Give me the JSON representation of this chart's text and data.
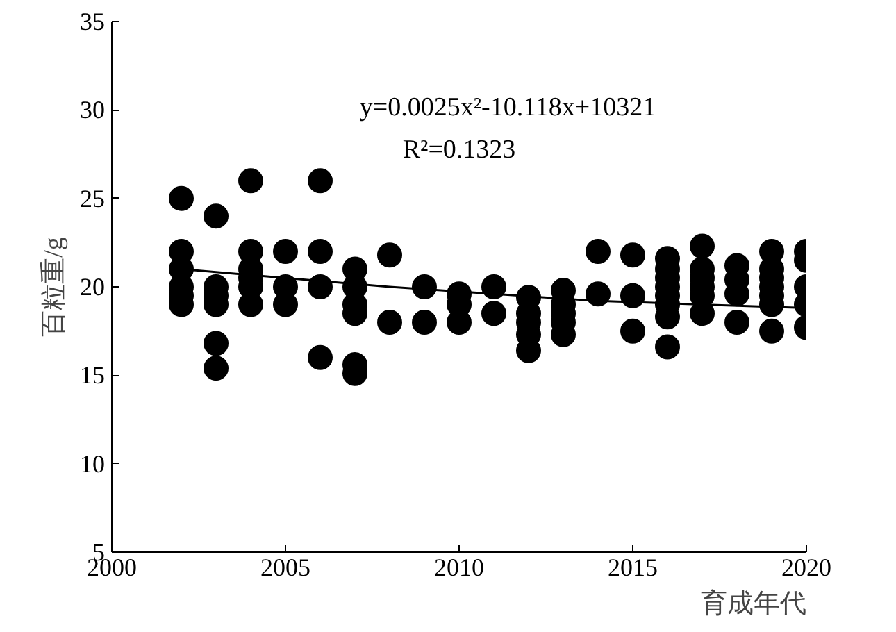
{
  "chart_data": {
    "type": "scatter",
    "xlabel": "育成年代",
    "ylabel": "百粒重/g",
    "annotations": [
      "y=0.0025x²-10.118x+10321",
      "R²=0.1323"
    ],
    "xlim": [
      2000,
      2020
    ],
    "ylim": [
      5,
      35
    ],
    "xticks": [
      2000,
      2005,
      2010,
      2015,
      2020
    ],
    "yticks": [
      5,
      10,
      15,
      20,
      25,
      30,
      35
    ],
    "grid": false,
    "marker": "circle",
    "series": [
      {
        "color": "#000000",
        "x": [
          2002,
          2002,
          2002,
          2002,
          2002,
          2002,
          2003,
          2003,
          2003,
          2003,
          2003,
          2003,
          2004,
          2004,
          2004,
          2004,
          2004,
          2004,
          2005,
          2005,
          2005,
          2006,
          2006,
          2006,
          2006,
          2007,
          2007,
          2007,
          2007,
          2007,
          2007,
          2008,
          2008,
          2009,
          2009,
          2010,
          2010,
          2010,
          2011,
          2011,
          2012,
          2012,
          2012,
          2012,
          2012,
          2013,
          2013,
          2013,
          2013,
          2013,
          2014,
          2014,
          2015,
          2015,
          2015,
          2016,
          2016,
          2016,
          2016,
          2016,
          2016,
          2016,
          2016,
          2017,
          2017,
          2017,
          2017,
          2017,
          2017,
          2018,
          2018,
          2018,
          2018,
          2019,
          2019,
          2019,
          2019,
          2019,
          2019,
          2019,
          2020,
          2020,
          2020,
          2020,
          2020
        ],
        "values": [
          25,
          22,
          21,
          20,
          19.5,
          19,
          24,
          20,
          19.5,
          19,
          16.8,
          15.4,
          26,
          22,
          21,
          20.5,
          20,
          19,
          22,
          20,
          19,
          26,
          22,
          20,
          16,
          21,
          20,
          19,
          18.5,
          15.6,
          15.1,
          21.8,
          18,
          20,
          18,
          19.6,
          19,
          18,
          20,
          18.5,
          19.4,
          18.5,
          18,
          17.3,
          16.4,
          19.8,
          19,
          18.5,
          18,
          17.3,
          22,
          19.6,
          21.8,
          19.5,
          17.5,
          21.6,
          21,
          20.5,
          20,
          19.5,
          19,
          18.3,
          16.6,
          22.3,
          21,
          20.5,
          20,
          19.5,
          18.5,
          21.2,
          20.4,
          19.6,
          18,
          22,
          21,
          20.5,
          20,
          19.5,
          19,
          17.5,
          22,
          21.5,
          20,
          19,
          17.7
        ]
      },
      {
        "type": "line",
        "color": "#000000",
        "marker": "none",
        "x": [
          2002,
          2008,
          2014,
          2020
        ],
        "values": [
          21.0,
          20.0,
          19.2,
          18.8
        ]
      }
    ]
  }
}
